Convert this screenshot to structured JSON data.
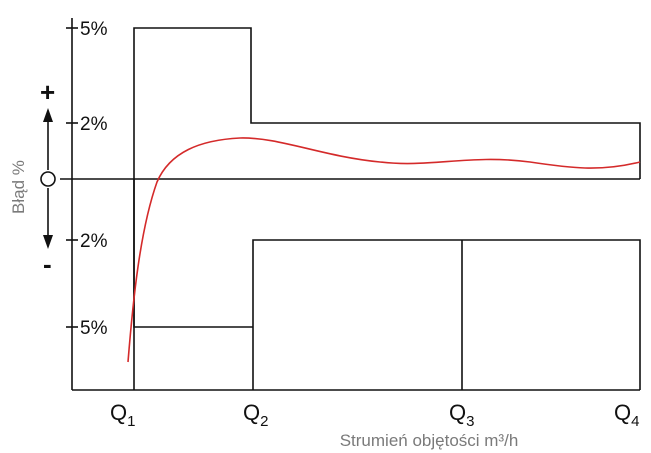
{
  "y_ticks": [
    {
      "key": "plus5",
      "label": "5%"
    },
    {
      "key": "plus2",
      "label": "2%"
    },
    {
      "key": "minus2",
      "label": "2%"
    },
    {
      "key": "minus5",
      "label": "5%"
    }
  ],
  "q_labels": [
    {
      "main": "Q",
      "sub": "1"
    },
    {
      "main": "Q",
      "sub": "2"
    },
    {
      "main": "Q",
      "sub": "3"
    },
    {
      "main": "Q",
      "sub": "4"
    }
  ],
  "xaxis_label": "Strumień objętości m³/h",
  "yaxis_label": "Błąd  %",
  "plus_sign": "+",
  "minus_sign": "-",
  "colors": {
    "error_curve": "#d42a2a",
    "envelope": "#111111",
    "axis_label": "#7a7a7a"
  },
  "upper_limits_percent": [
    5,
    2
  ],
  "lower_limits_percent": [
    -5,
    -2
  ],
  "zero_marker": "circle"
}
